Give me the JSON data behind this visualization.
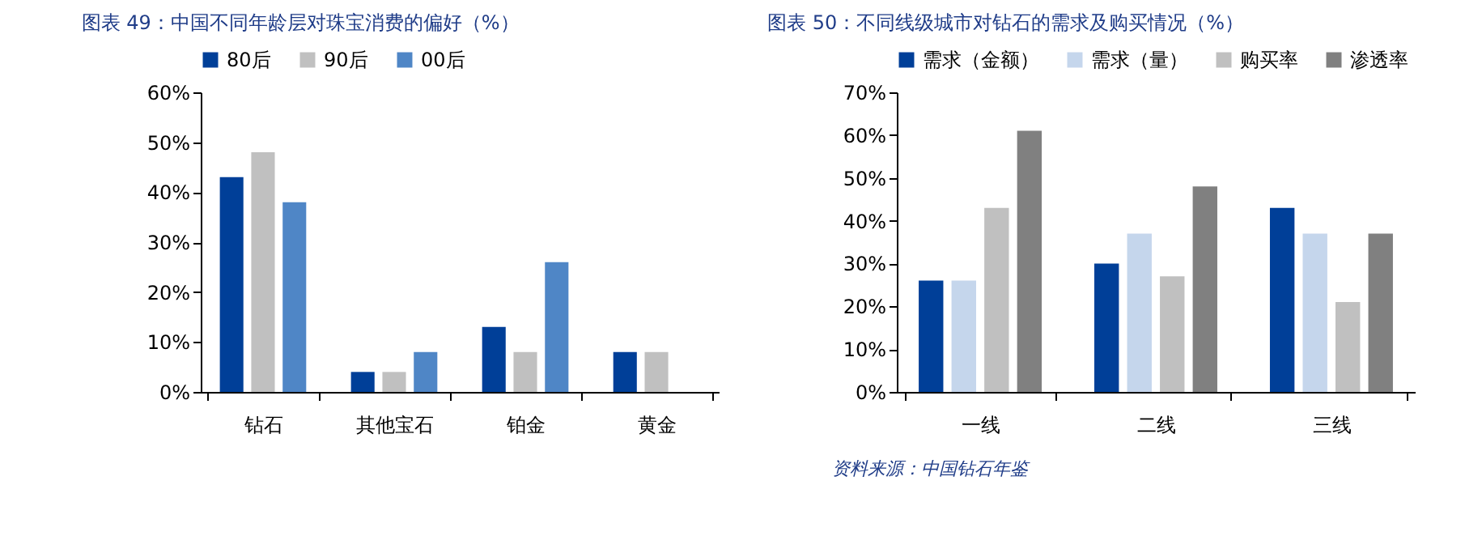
{
  "chart_data": [
    {
      "type": "bar",
      "title": "图表 49：中国不同年龄层对珠宝消费的偏好（%）",
      "categories": [
        "钻石",
        "其他宝石",
        "铂金",
        "黄金"
      ],
      "series": [
        {
          "name": "80后",
          "color": "#003f98",
          "values": [
            43,
            4,
            13,
            8
          ]
        },
        {
          "name": "90后",
          "color": "#c0c0c0",
          "values": [
            48,
            4,
            8,
            8
          ]
        },
        {
          "name": "00后",
          "color": "#4f86c6",
          "values": [
            38,
            8,
            26,
            null
          ]
        }
      ],
      "ylim": [
        0,
        60
      ],
      "yticks": [
        {
          "value": 0,
          "label": "0%"
        },
        {
          "value": 10,
          "label": "10%"
        },
        {
          "value": 20,
          "label": "20%"
        },
        {
          "value": 30,
          "label": "30%"
        },
        {
          "value": 40,
          "label": "40%"
        },
        {
          "value": 50,
          "label": "50%"
        },
        {
          "value": 60,
          "label": "60%"
        }
      ],
      "grid": false,
      "legend": "top"
    },
    {
      "type": "bar",
      "title": "图表 50：不同线级城市对钻石的需求及购买情况（%）",
      "categories": [
        "一线",
        "二线",
        "三线"
      ],
      "series": [
        {
          "name": "需求（金额）",
          "color": "#003f98",
          "values": [
            26,
            30,
            43
          ]
        },
        {
          "name": "需求（量）",
          "color": "#c5d6ec",
          "values": [
            26,
            37,
            37
          ]
        },
        {
          "name": "购买率",
          "color": "#c0c0c0",
          "values": [
            43,
            27,
            21
          ]
        },
        {
          "name": "渗透率",
          "color": "#808080",
          "values": [
            61,
            48,
            37
          ]
        }
      ],
      "ylim": [
        0,
        70
      ],
      "yticks": [
        {
          "value": 0,
          "label": "0%"
        },
        {
          "value": 10,
          "label": "10%"
        },
        {
          "value": 20,
          "label": "20%"
        },
        {
          "value": 30,
          "label": "30%"
        },
        {
          "value": 40,
          "label": "40%"
        },
        {
          "value": 50,
          "label": "50%"
        },
        {
          "value": 60,
          "label": "60%"
        },
        {
          "value": 70,
          "label": "70%"
        }
      ],
      "grid": false,
      "legend": "top",
      "annotations": [
        "资料来源：中国钻石年鉴"
      ]
    }
  ]
}
